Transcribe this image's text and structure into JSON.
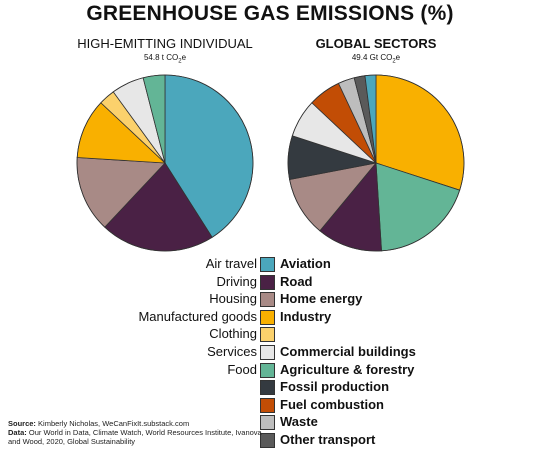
{
  "title": "GREENHOUSE GAS EMISSIONS (%)",
  "colors": {
    "Aviation": "#4ba7bc",
    "Road": "#4a2145",
    "Home energy": "#a88a86",
    "Industry": "#f9b000",
    "Clothing": "#fbd16c",
    "Commercial buildings": "#e7e7e7",
    "Agriculture & forestry": "#63b596",
    "Fossil production": "#343a40",
    "Fuel combustion": "#c24d05",
    "Waste": "#bdbdbd",
    "Other transport": "#5a5a5a"
  },
  "chart_data": [
    {
      "type": "pie",
      "title": "HIGH-EMITTING INDIVIDUAL",
      "subtitle": "54.8 t CO",
      "subtitle_sub": "2",
      "subtitle_tail": "e",
      "start_angle": 0,
      "direction": "clockwise",
      "slices": [
        {
          "label": "Air travel",
          "category": "Aviation",
          "value": 41
        },
        {
          "label": "Driving",
          "category": "Road",
          "value": 21
        },
        {
          "label": "Housing",
          "category": "Home energy",
          "value": 14
        },
        {
          "label": "Manufactured goods",
          "category": "Industry",
          "value": 11
        },
        {
          "label": "Clothing",
          "category": "Clothing",
          "value": 3
        },
        {
          "label": "Services",
          "category": "Commercial buildings",
          "value": 6
        },
        {
          "label": "Food",
          "category": "Agriculture & forestry",
          "value": 4
        }
      ]
    },
    {
      "type": "pie",
      "title": "GLOBAL SECTORS",
      "subtitle": "49.4 Gt CO",
      "subtitle_sub": "2",
      "subtitle_tail": "e",
      "start_angle": 0,
      "direction": "clockwise",
      "slices": [
        {
          "category": "Industry",
          "value": 30
        },
        {
          "category": "Agriculture & forestry",
          "value": 19
        },
        {
          "category": "Road",
          "value": 12
        },
        {
          "category": "Home energy",
          "value": 11
        },
        {
          "category": "Fossil production",
          "value": 8
        },
        {
          "category": "Commercial buildings",
          "value": 7
        },
        {
          "category": "Fuel combustion",
          "value": 6
        },
        {
          "category": "Waste",
          "value": 3
        },
        {
          "category": "Other transport",
          "value": 2
        },
        {
          "category": "Aviation",
          "value": 2
        }
      ]
    }
  ],
  "legend": {
    "left_labels": [
      "Air travel",
      "Driving",
      "Housing",
      "Manufactured goods",
      "Clothing",
      "Services",
      "Food"
    ],
    "categories": [
      "Aviation",
      "Road",
      "Home energy",
      "Industry",
      "Clothing",
      "Commercial buildings",
      "Agriculture & forestry",
      "Fossil production",
      "Fuel combustion",
      "Waste",
      "Other transport"
    ],
    "right_labels": [
      "Aviation",
      "Road",
      "Home energy",
      "Industry",
      "",
      "Commercial buildings",
      "Agriculture & forestry",
      "Fossil production",
      "Fuel combustion",
      "Waste",
      "Other transport"
    ]
  },
  "source": {
    "source_label": "Source:",
    "source_text": "Kimberly Nicholas, WeCanFixIt.substack.com",
    "data_label": "Data:",
    "data_text": "Our World in Data, Climate Watch, World Resources Institute, Ivanova and Wood, 2020, Global Sustainability"
  }
}
